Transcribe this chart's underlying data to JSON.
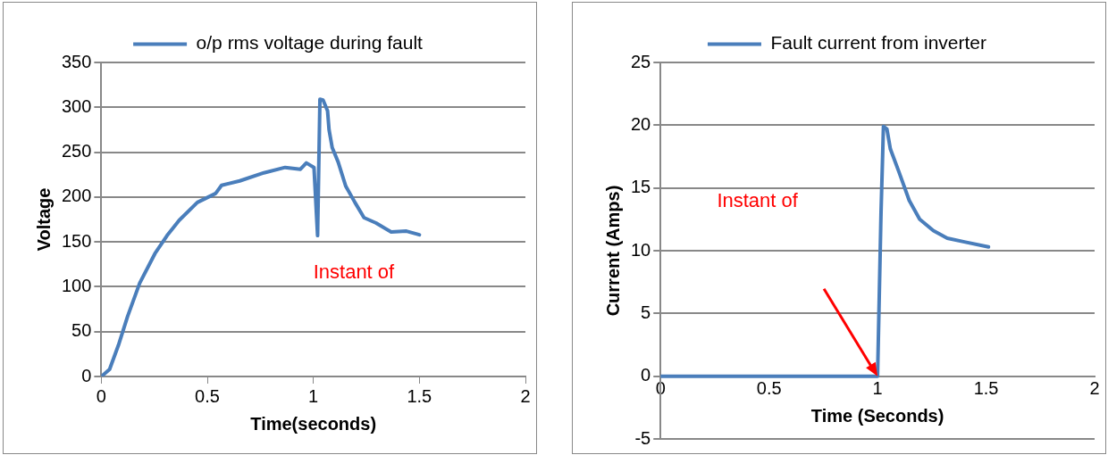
{
  "chart_data": [
    {
      "type": "line",
      "xlabel": "Time(seconds)",
      "ylabel": "Voltage",
      "legend": "top",
      "grid": "y",
      "xlim": [
        0,
        2
      ],
      "xticks": [
        0,
        0.5,
        1,
        1.5,
        2
      ],
      "ylim": [
        0,
        350
      ],
      "yticks": [
        0,
        50,
        100,
        150,
        200,
        250,
        300,
        350
      ],
      "series": [
        {
          "name": "o/p rms voltage during fault",
          "color": "#4a7ebb",
          "x": [
            0,
            0.039,
            0.081,
            0.124,
            0.181,
            0.253,
            0.31,
            0.367,
            0.453,
            0.539,
            0.567,
            0.653,
            0.767,
            0.867,
            0.939,
            0.967,
            1.003,
            1.02,
            1.031,
            1.046,
            1.067,
            1.074,
            1.089,
            1.117,
            1.153,
            1.196,
            1.239,
            1.296,
            1.367,
            1.439,
            1.5
          ],
          "values": [
            0,
            8,
            35,
            67,
            104,
            137,
            157,
            174,
            194,
            204,
            213,
            218,
            227,
            233,
            231,
            238,
            233,
            157,
            309,
            308,
            296,
            275,
            255,
            239,
            212,
            194,
            177,
            171,
            161,
            162,
            158
          ]
        }
      ],
      "annotations": [
        "Instant of"
      ]
    },
    {
      "type": "line",
      "xlabel": "Time (Seconds)",
      "ylabel": "Current (Amps)",
      "legend": "top",
      "grid": "y",
      "xlim": [
        0,
        2
      ],
      "xticks": [
        0,
        0.5,
        1,
        1.5,
        2
      ],
      "ylim": [
        -5,
        25
      ],
      "yticks": [
        -5,
        0,
        5,
        10,
        15,
        20,
        25
      ],
      "series": [
        {
          "name": "Fault current from inverter",
          "color": "#4a7ebb",
          "x": [
            0,
            0.987,
            1,
            1.016,
            1.027,
            1.043,
            1.059,
            1.098,
            1.146,
            1.194,
            1.257,
            1.321,
            1.4,
            1.511
          ],
          "values": [
            0,
            0,
            0,
            13.1,
            19.9,
            19.7,
            18.1,
            16.3,
            14,
            12.5,
            11.6,
            11,
            10.7,
            10.3
          ]
        }
      ],
      "annotations": [
        "Instant of"
      ]
    }
  ]
}
